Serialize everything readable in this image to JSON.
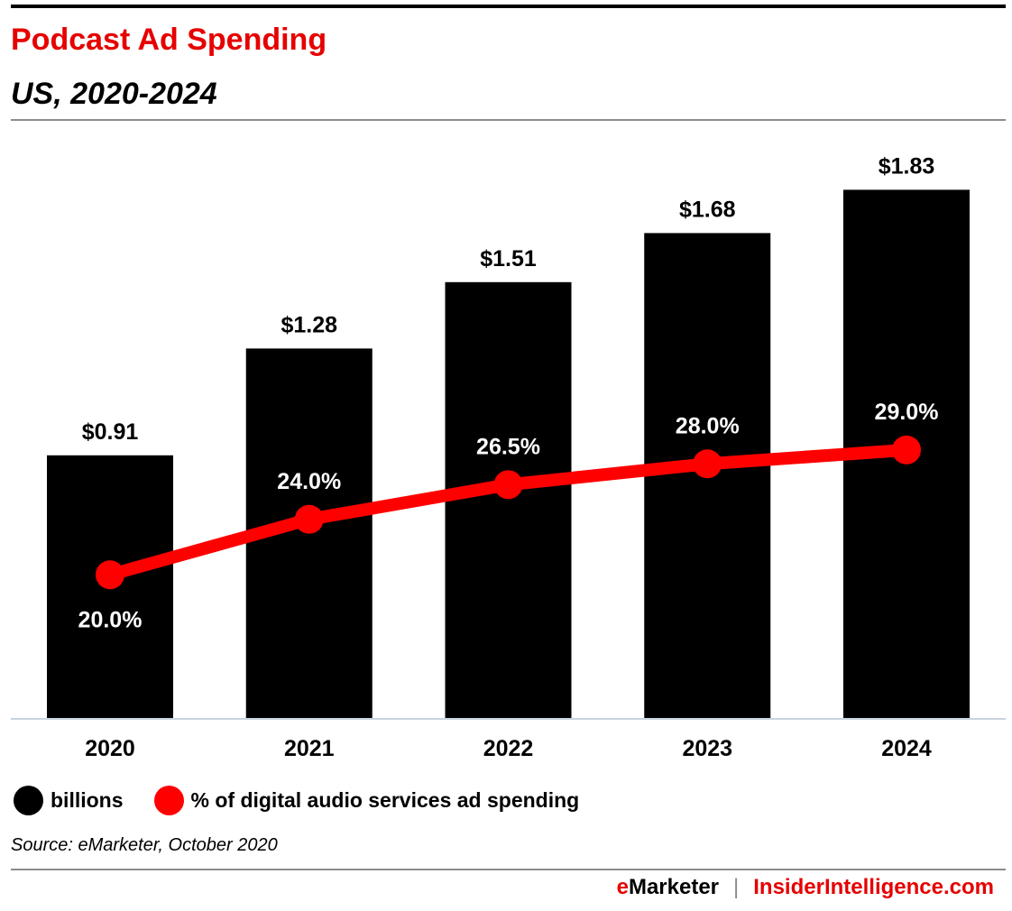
{
  "header": {
    "title": "Podcast Ad Spending",
    "subtitle": "US, 2020-2024"
  },
  "chart_data": {
    "type": "bar",
    "title": "Podcast Ad Spending",
    "subtitle": "US, 2020-2024",
    "categories": [
      "2020",
      "2021",
      "2022",
      "2023",
      "2024"
    ],
    "series": [
      {
        "name": "billions",
        "type": "bar",
        "values": [
          0.91,
          1.28,
          1.51,
          1.68,
          1.83
        ],
        "labels": [
          "$0.91",
          "$1.28",
          "$1.51",
          "$1.68",
          "$1.83"
        ],
        "color": "#000000"
      },
      {
        "name": "% of digital audio services ad spending",
        "type": "line",
        "values": [
          20.0,
          24.0,
          26.5,
          28.0,
          29.0
        ],
        "labels": [
          "20.0%",
          "24.0%",
          "26.5%",
          "28.0%",
          "29.0%"
        ],
        "color": "#ff0000"
      }
    ],
    "legend_position": "bottom-left",
    "grid": false
  },
  "legend": {
    "items": [
      {
        "label": "billions",
        "color": "#000000"
      },
      {
        "label": "% of digital audio services ad spending",
        "color": "#ff0000"
      }
    ]
  },
  "source": "Source: eMarketer, October 2020",
  "footer": {
    "brand_e": "e",
    "brand_rest": "Marketer",
    "separator": "|",
    "site": "InsiderIntelligence.com"
  },
  "colors": {
    "accent": "#e60000",
    "line": "#ff0000",
    "bar": "#000000"
  }
}
